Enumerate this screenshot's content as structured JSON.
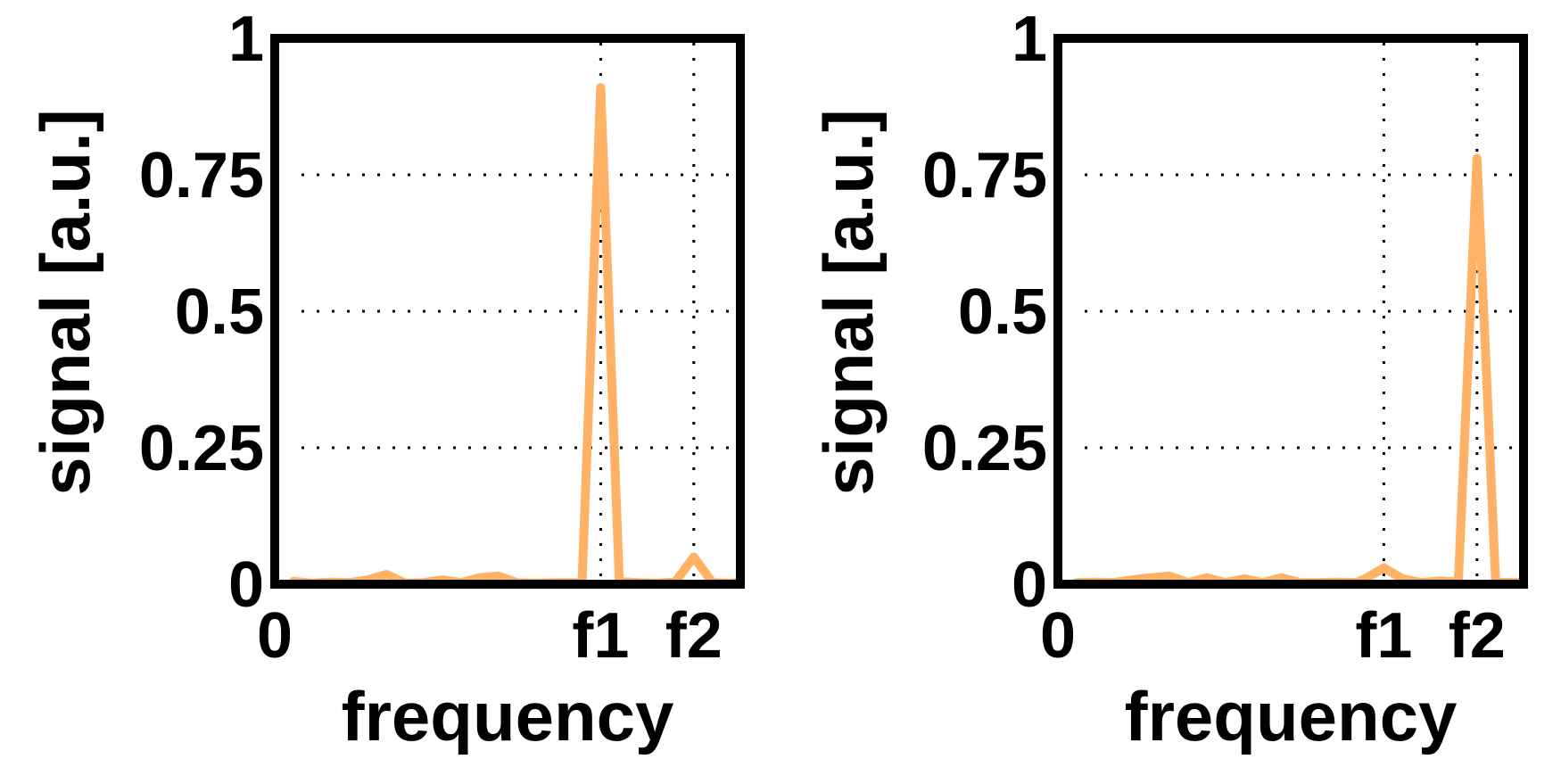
{
  "chart_data": [
    {
      "type": "line",
      "xlabel": "frequency",
      "ylabel": "signal [a.u.]",
      "ylim": [
        0,
        1
      ],
      "xlim": [
        0,
        1.0
      ],
      "yticks": [
        {
          "value": 0,
          "label": "0"
        },
        {
          "value": 0.25,
          "label": "0.25"
        },
        {
          "value": 0.5,
          "label": "0.5"
        },
        {
          "value": 0.75,
          "label": "0.75"
        },
        {
          "value": 1,
          "label": "1"
        }
      ],
      "xticks": [
        {
          "value": 0,
          "label": "0"
        },
        {
          "value": 0.7,
          "label": "f1"
        },
        {
          "value": 0.9,
          "label": "f2"
        }
      ],
      "vgrid": [
        0.7,
        0.9
      ],
      "grid": "dotted",
      "color": "#ffb266",
      "series": [
        {
          "x": [
            0.04,
            0.08,
            0.12,
            0.16,
            0.2,
            0.24,
            0.28,
            0.32,
            0.36,
            0.4,
            0.44,
            0.48,
            0.52,
            0.56,
            0.6,
            0.64,
            0.66,
            0.7,
            0.74,
            0.78,
            0.82,
            0.86,
            0.9,
            0.94,
            0.98,
            1.0
          ],
          "y": [
            0.005,
            0.002,
            0.004,
            0.003,
            0.008,
            0.018,
            0.002,
            0.003,
            0.008,
            0.003,
            0.012,
            0.015,
            0.003,
            0.002,
            0.003,
            0.003,
            0.003,
            0.91,
            0.005,
            0.003,
            0.002,
            0.004,
            0.05,
            0.003,
            0.002,
            0.004
          ]
        }
      ]
    },
    {
      "type": "line",
      "xlabel": "frequency",
      "ylabel": "signal [a.u.]",
      "ylim": [
        0,
        1
      ],
      "xlim": [
        0,
        1.0
      ],
      "yticks": [
        {
          "value": 0,
          "label": "0"
        },
        {
          "value": 0.25,
          "label": "0.25"
        },
        {
          "value": 0.5,
          "label": "0.5"
        },
        {
          "value": 0.75,
          "label": "0.75"
        },
        {
          "value": 1,
          "label": "1"
        }
      ],
      "xticks": [
        {
          "value": 0,
          "label": "0"
        },
        {
          "value": 0.7,
          "label": "f1"
        },
        {
          "value": 0.9,
          "label": "f2"
        }
      ],
      "vgrid": [
        0.7,
        0.9
      ],
      "grid": "dotted",
      "color": "#ffb266",
      "series": [
        {
          "x": [
            0.04,
            0.08,
            0.12,
            0.16,
            0.2,
            0.24,
            0.28,
            0.32,
            0.36,
            0.4,
            0.44,
            0.48,
            0.52,
            0.56,
            0.6,
            0.64,
            0.66,
            0.7,
            0.74,
            0.78,
            0.82,
            0.86,
            0.9,
            0.94,
            0.98,
            1.0
          ],
          "y": [
            0.003,
            0.004,
            0.003,
            0.008,
            0.012,
            0.015,
            0.003,
            0.012,
            0.003,
            0.01,
            0.003,
            0.012,
            0.003,
            0.003,
            0.004,
            0.003,
            0.01,
            0.03,
            0.01,
            0.003,
            0.006,
            0.004,
            0.78,
            0.004,
            0.003,
            0.004
          ]
        }
      ]
    }
  ]
}
